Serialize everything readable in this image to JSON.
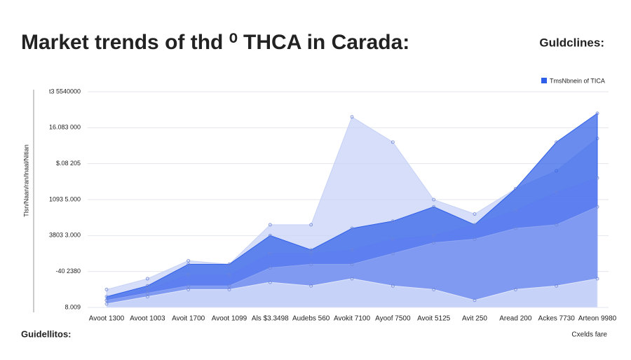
{
  "header": {
    "right": "Guldclines:"
  },
  "footer": {
    "left": "Guidellitos:",
    "right": "Cxelds fare"
  },
  "chart_data": {
    "type": "area",
    "title": "Market trends  of thd ⁰ THCA in Carada:",
    "y_label": "Tlsn/Naan/ran/lnaal/Nitian",
    "categories": [
      "Avoot 1300",
      "Avoot 1003",
      "Avoit 1700",
      "Avoot 1099",
      "Als $3.3498",
      "Audebs 560",
      "Avokit 7100",
      "Ayoof 7500",
      "Avoit 5125",
      "Avit 250",
      "Aread 200",
      "Ackes 7730",
      "Arteon 9980"
    ],
    "series": [
      {
        "color": "#c6d1f6",
        "values": [
          0.5,
          0.8,
          1.3,
          1.2,
          2.3,
          2.3,
          5.3,
          4.6,
          3.0,
          2.6,
          3.3,
          3.8,
          4.7
        ]
      },
      {
        "name": "TmsNbnein of TICA",
        "color": "#2f5fe8",
        "values": [
          0.3,
          0.6,
          1.2,
          1.2,
          2.0,
          1.6,
          2.2,
          2.4,
          2.8,
          2.3,
          3.3,
          4.6,
          5.4
        ]
      },
      {
        "color": "#5d7ef0",
        "values": [
          0.2,
          0.5,
          0.9,
          0.9,
          1.5,
          1.5,
          1.6,
          1.9,
          2.0,
          2.3,
          2.7,
          3.2,
          3.6
        ]
      },
      {
        "color": "#8ea5f3",
        "values": [
          0.2,
          0.4,
          0.6,
          0.6,
          1.1,
          1.2,
          1.2,
          1.5,
          1.8,
          1.9,
          2.2,
          2.3,
          2.8
        ]
      },
      {
        "color": "#e1e7fa",
        "values": [
          0.1,
          0.3,
          0.5,
          0.5,
          0.7,
          0.6,
          0.8,
          0.6,
          0.5,
          0.2,
          0.5,
          0.6,
          0.8
        ]
      }
    ],
    "ylim": [
      0,
      6
    ],
    "yticks": [
      {
        "value": 6,
        "label": "t3 5540000"
      },
      {
        "value": 5,
        "label": "16.083 000"
      },
      {
        "value": 4,
        "label": "$.08 205"
      },
      {
        "value": 3,
        "label": "1093 5.000"
      },
      {
        "value": 2,
        "label": "3803 3.000"
      },
      {
        "value": 1,
        "label": "-40 2380"
      },
      {
        "value": 0,
        "label": "8.009"
      }
    ],
    "grid": true
  }
}
